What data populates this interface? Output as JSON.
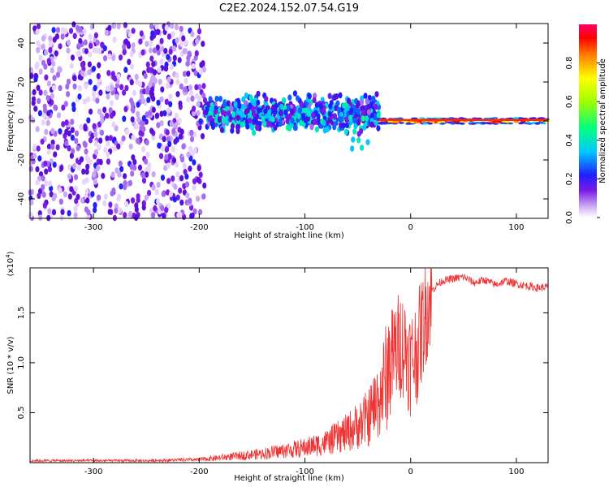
{
  "title": "C2E2.2024.152.07.54.G19",
  "chart_data": [
    {
      "type": "heatmap",
      "xlabel": "Height of straight line (km)",
      "ylabel": "Frequency (Hz)",
      "xlim": [
        -360,
        130
      ],
      "ylim": [
        -50,
        50
      ],
      "xticks": [
        -300,
        -200,
        -100,
        0,
        100
      ],
      "yticks": [
        -40,
        -20,
        0,
        20,
        40
      ],
      "colorbar": {
        "label": "Normalized spectral amplitude",
        "range": [
          0,
          1
        ],
        "ticks": [
          "0.0",
          "0.2",
          "0.4",
          "0.6",
          "0.8"
        ],
        "colormap": "rainbow"
      },
      "regions": [
        {
          "x": [
            -360,
            -195
          ],
          "description_level": "scattered noise",
          "amplitude": 0.25,
          "freq_spread": [
            -50,
            50
          ]
        },
        {
          "x": [
            -195,
            -30
          ],
          "amplitude": 0.45,
          "center_freq": 4,
          "freq_spread": [
            -10,
            12
          ]
        },
        {
          "x": [
            -30,
            130
          ],
          "amplitude": 0.9,
          "center_freq": 0,
          "freq_spread": [
            -2,
            3
          ]
        }
      ]
    },
    {
      "type": "line",
      "xlabel": "Height of straight line (km)",
      "ylabel": "SNR (10 * v/v)",
      "multiplier": "(x10^4)",
      "xlim": [
        -360,
        130
      ],
      "ylim": [
        0,
        1.95
      ],
      "xticks": [
        -300,
        -200,
        -100,
        0,
        100
      ],
      "yticks": [
        "0.5",
        "1.0",
        "1.5"
      ],
      "color": "#ee3333",
      "series": [
        {
          "x": [
            -360,
            -300,
            -250,
            -200,
            -180,
            -160,
            -140,
            -120,
            -100,
            -80,
            -60,
            -40,
            -30,
            -20,
            -15,
            -10,
            -5,
            0,
            5,
            10,
            15,
            20,
            25,
            30,
            40,
            50,
            60,
            70,
            80,
            90,
            100,
            110,
            120,
            130
          ],
          "values": [
            0.02,
            0.02,
            0.02,
            0.03,
            0.05,
            0.07,
            0.09,
            0.12,
            0.15,
            0.2,
            0.3,
            0.45,
            0.65,
            0.95,
            1.1,
            1.2,
            1.15,
            1.0,
            1.1,
            1.3,
            1.55,
            1.72,
            1.78,
            1.82,
            1.84,
            1.86,
            1.8,
            1.83,
            1.78,
            1.82,
            1.79,
            1.77,
            1.75,
            1.76
          ]
        }
      ]
    }
  ]
}
